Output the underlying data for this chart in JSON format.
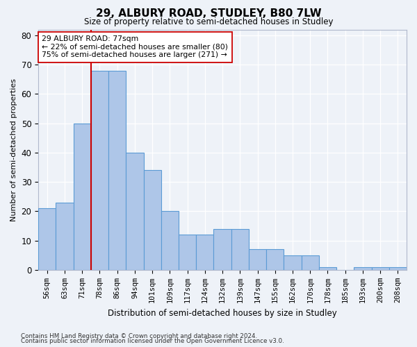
{
  "title": "29, ALBURY ROAD, STUDLEY, B80 7LW",
  "subtitle": "Size of property relative to semi-detached houses in Studley",
  "xlabel": "Distribution of semi-detached houses by size in Studley",
  "ylabel": "Number of semi-detached properties",
  "categories": [
    "56sqm",
    "63sqm",
    "71sqm",
    "78sqm",
    "86sqm",
    "94sqm",
    "101sqm",
    "109sqm",
    "117sqm",
    "124sqm",
    "132sqm",
    "139sqm",
    "147sqm",
    "155sqm",
    "162sqm",
    "170sqm",
    "178sqm",
    "185sqm",
    "193sqm",
    "200sqm",
    "208sqm"
  ],
  "values": [
    21,
    23,
    50,
    68,
    68,
    40,
    34,
    20,
    12,
    12,
    14,
    14,
    7,
    7,
    5,
    5,
    1,
    0,
    1,
    1,
    1
  ],
  "bar_color": "#aec6e8",
  "bar_edge_color": "#5b9bd5",
  "highlight_line_color": "#cc0000",
  "highlight_line_index": 3,
  "ylim": [
    0,
    82
  ],
  "yticks": [
    0,
    10,
    20,
    30,
    40,
    50,
    60,
    70,
    80
  ],
  "annotation_text": "29 ALBURY ROAD: 77sqm\n← 22% of semi-detached houses are smaller (80)\n75% of semi-detached houses are larger (271) →",
  "annotation_box_facecolor": "#ffffff",
  "annotation_box_edgecolor": "#cc0000",
  "footnote1": "Contains HM Land Registry data © Crown copyright and database right 2024.",
  "footnote2": "Contains public sector information licensed under the Open Government Licence v3.0.",
  "background_color": "#eef2f8",
  "grid_color": "#ffffff"
}
